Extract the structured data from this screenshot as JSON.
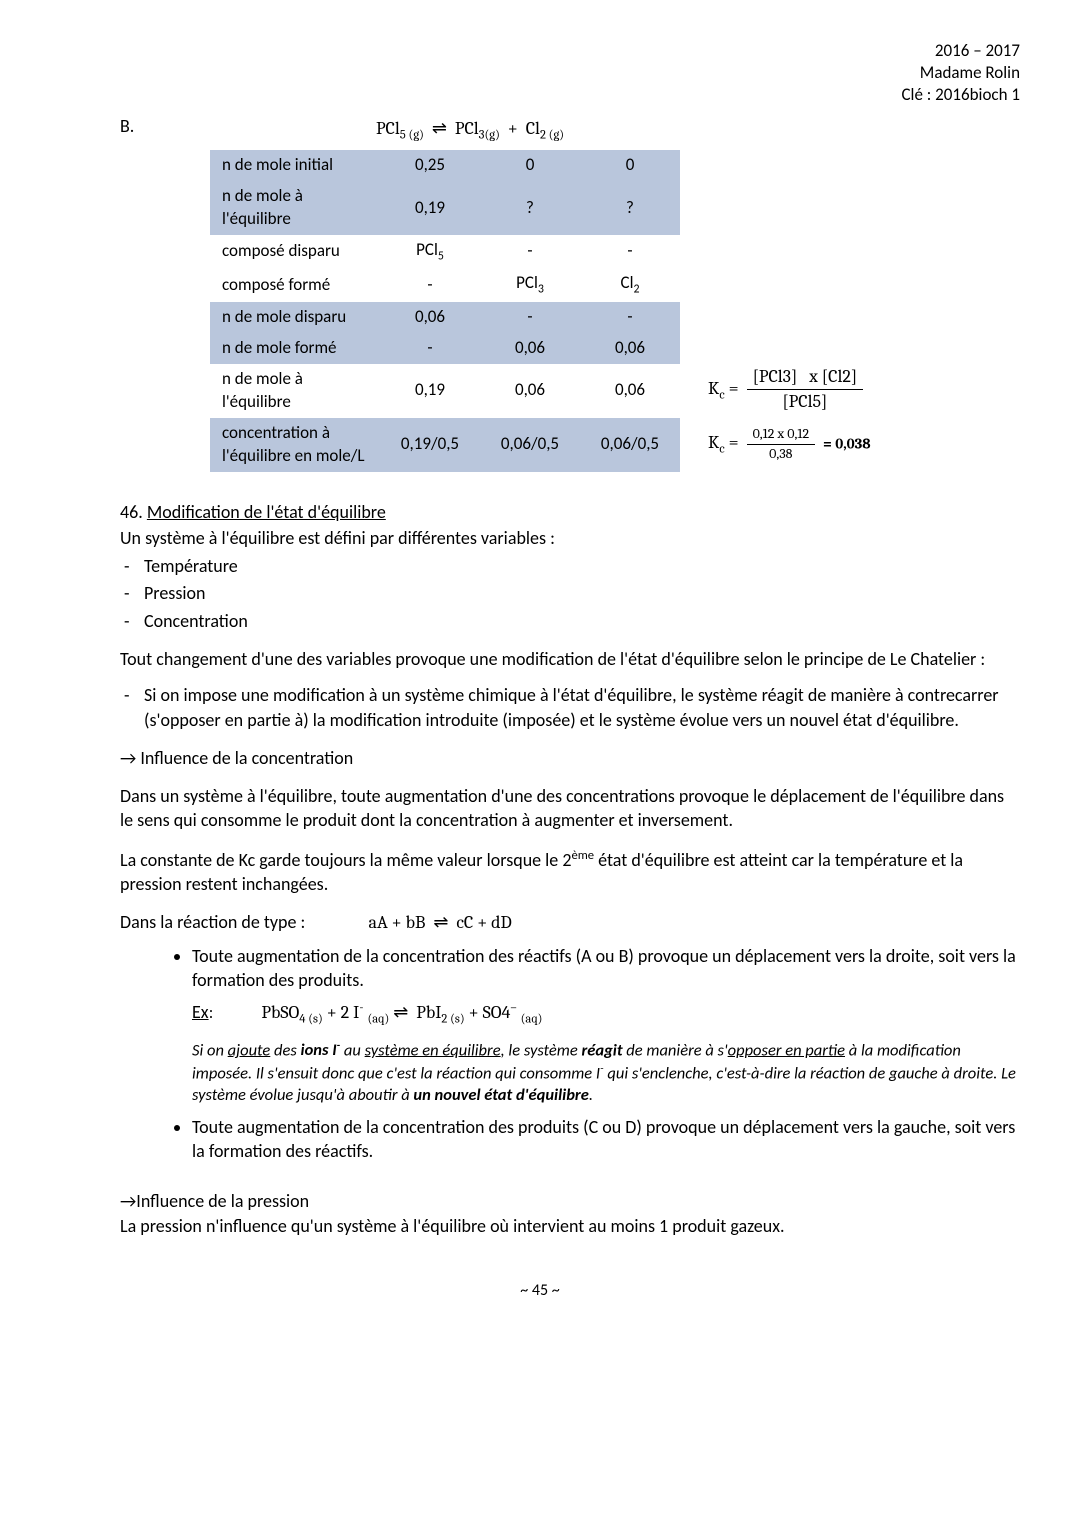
{
  "header": {
    "year": "2016 – 2017",
    "teacher": "Madame Rolin",
    "key": "Clé : 2016bioch 1"
  },
  "section_b": {
    "label": "B.",
    "equation_html": "PCl<sub>5 (g)</sub>&nbsp;&nbsp;⇌&nbsp;&nbsp;PCl<sub>3(g)</sub>&nbsp;&nbsp;+&nbsp;&nbsp;Cl<sub>2 (g)</sub>",
    "table": {
      "rows": [
        {
          "shade": true,
          "labels": [
            "n de mole initial",
            "n de mole à l'équilibre"
          ],
          "c1": [
            "0,25",
            "0,19"
          ],
          "c2": [
            "0",
            "?"
          ],
          "c3": [
            "0",
            "?"
          ]
        },
        {
          "shade": false,
          "labels": [
            "composé disparu",
            "composé formé"
          ],
          "c1": [
            "PCl<sub>5</sub>",
            "-"
          ],
          "c2": [
            "-",
            "PCl<sub>3</sub>"
          ],
          "c3": [
            "-",
            "Cl<sub>2</sub>"
          ]
        },
        {
          "shade": true,
          "labels": [
            "n de mole disparu",
            "n de mole formé"
          ],
          "c1": [
            "0,06",
            "-"
          ],
          "c2": [
            "-",
            "0,06"
          ],
          "c3": [
            "-",
            "0,06"
          ]
        },
        {
          "shade": false,
          "labels": [
            "n de mole à l'équilibre"
          ],
          "c1": [
            "0,19"
          ],
          "c2": [
            "0,06"
          ],
          "c3": [
            "0,06"
          ]
        },
        {
          "shade": true,
          "labels": [
            "concentration à l'équilibre en mole/L"
          ],
          "c1": [
            "0,19/0,5"
          ],
          "c2": [
            "0,06/0,5"
          ],
          "c3": [
            "0,06/0,5"
          ]
        }
      ]
    },
    "kc": {
      "line1_left": "K<sub>c</sub> = ",
      "line1_top": "[PCl3]&nbsp;&nbsp;&nbsp;x [Cl2]",
      "line1_bot": "[PCl5]",
      "line2_left": "K<sub>c</sub> = ",
      "line2_top": "0,12 x 0,12",
      "line2_bot": "0,38",
      "line2_result": "= 0,038"
    }
  },
  "sec46": {
    "num": "46.",
    "title": "Modification de l'état d'équilibre",
    "intro": "Un système à l'équilibre est défini par différentes variables :",
    "vars": [
      "Température",
      "Pression",
      "Concentration"
    ],
    "chatelier_intro": "Tout changement d'une des variables provoque une modification de l'état d'équilibre selon le principe de Le Chatelier :",
    "chatelier_item": "Si on impose une modification à un système chimique à l'état d'équilibre, le système réagit de manière à contrecarrer (s'opposer en partie à) la modification introduite (imposée) et le système évolue vers un nouvel état d'équilibre.",
    "influence_conc": "→ Influence de la concentration",
    "conc_p1": "Dans un système à l'équilibre, toute augmentation d'une des concentrations provoque le déplacement de l'équilibre dans le sens qui consomme le produit dont la concentration à augmenter et inversement.",
    "conc_p2_html": "La constante de Kc garde toujours la même valeur lorsque le 2<sup>ème</sup> état d'équilibre est atteint car la température et la pression restent inchangées.",
    "reaction_type_label": "Dans la réaction de type :",
    "reaction_type_eq": "aA + bB&nbsp;&nbsp;⇌&nbsp;&nbsp;cC + dD",
    "bullets": [
      {
        "text": "Toute augmentation de la concentration des réactifs (A ou B) provoque un déplacement vers la droite, soit vers la formation des produits.",
        "ex_label": "Ex",
        "ex_eq_html": "PbSO<sub>4 (s)</sub> + 2 I<sup>-</sup> <sub>(aq)</sub> ⇌&nbsp; PbI<sub>2 (s)</sub> + SO4<sup>–</sup> <sub>(aq)</sub>",
        "note_html": "Si on <u>ajoute</u> des <b>ions I<sup>-</sup></b> au <u>système en équilibre</u>, le système <b>réagit</b> de manière <i>à s'<u>opposer en partie</u></i> à la modification imposée. Il s'ensuit donc que c'est la réaction qui consomme I<sup>-</sup> qui s'enclenche, c'est-à-dire la réaction de gauche à droite. Le système évolue jusqu'à aboutir à <b>un nouvel état d'équilibre</b>."
      },
      {
        "text": "Toute augmentation de la concentration des produits (C ou D) provoque un déplacement vers la gauche, soit vers la formation des réactifs."
      }
    ],
    "influence_press": "→Influence de la pression",
    "press_p1": "La pression n'influence qu'un système à l'équilibre où intervient au moins 1 produit gazeux."
  },
  "footer": "~ 45 ~"
}
